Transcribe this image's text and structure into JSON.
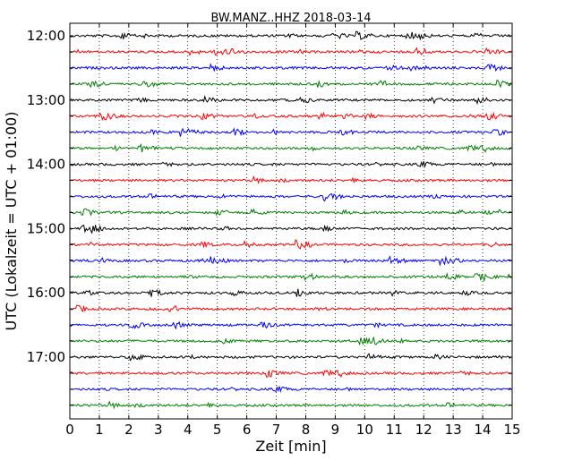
{
  "chart_data": {
    "type": "line",
    "title": "BW.MANZ..HHZ 2018-03-14",
    "xlabel": "Zeit  [min]",
    "ylabel": "UTC (Lokalzeit = UTC + 01:00)",
    "xlim": [
      0,
      15
    ],
    "x_ticks": [
      "0",
      "1",
      "2",
      "3",
      "4",
      "5",
      "6",
      "7",
      "8",
      "9",
      "10",
      "11",
      "12",
      "13",
      "14",
      "15"
    ],
    "y_tick_labels": [
      "12:00",
      "13:00",
      "14:00",
      "15:00",
      "16:00",
      "17:00"
    ],
    "grid": "vertical dotted lines at each minute",
    "trace_interval_minutes": 15,
    "trace_colors": [
      "#000000",
      "#ff0000",
      "#0000ff",
      "#008000"
    ],
    "traces": [
      {
        "start": "12:00",
        "color": "#000000"
      },
      {
        "start": "12:15",
        "color": "#ff0000"
      },
      {
        "start": "12:30",
        "color": "#0000ff"
      },
      {
        "start": "12:45",
        "color": "#008000"
      },
      {
        "start": "13:00",
        "color": "#000000"
      },
      {
        "start": "13:15",
        "color": "#ff0000"
      },
      {
        "start": "13:30",
        "color": "#0000ff"
      },
      {
        "start": "13:45",
        "color": "#008000"
      },
      {
        "start": "14:00",
        "color": "#000000"
      },
      {
        "start": "14:15",
        "color": "#ff0000"
      },
      {
        "start": "14:30",
        "color": "#0000ff"
      },
      {
        "start": "14:45",
        "color": "#008000"
      },
      {
        "start": "15:00",
        "color": "#000000"
      },
      {
        "start": "15:15",
        "color": "#ff0000"
      },
      {
        "start": "15:30",
        "color": "#0000ff"
      },
      {
        "start": "15:45",
        "color": "#008000"
      },
      {
        "start": "16:00",
        "color": "#000000"
      },
      {
        "start": "16:15",
        "color": "#ff0000"
      },
      {
        "start": "16:30",
        "color": "#0000ff"
      },
      {
        "start": "16:45",
        "color": "#008000"
      },
      {
        "start": "17:00",
        "color": "#000000"
      },
      {
        "start": "17:15",
        "color": "#ff0000"
      },
      {
        "start": "17:30",
        "color": "#0000ff"
      },
      {
        "start": "17:45",
        "color": "#008000"
      }
    ]
  }
}
